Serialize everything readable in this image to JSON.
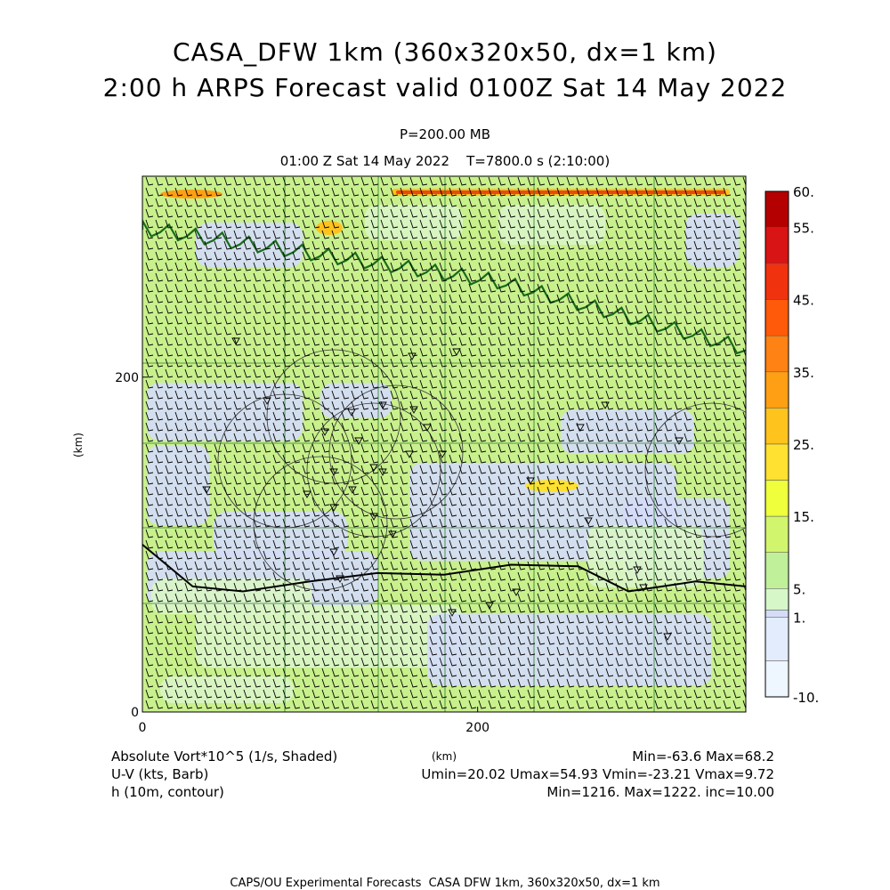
{
  "header": {
    "title_line1": "CASA_DFW 1km (360x320x50, dx=1 km)",
    "title_line2": "2:00 h ARPS Forecast valid 0100Z Sat 14 May 2022",
    "pressure": "P=200.00 MB",
    "time_line": "01:00 Z Sat 14 May 2022    T=7800.0 s (2:10:00)"
  },
  "footer": {
    "field1_label": "Absolute Vort*10^5 (1/s, Shaded)",
    "field2_label": "U-V (kts, Barb)",
    "field3_label": "h (10m, contour)",
    "x_unit": "(km)",
    "stats1": "Min=-63.6 Max=68.2",
    "stats2": "Umin=20.02 Umax=54.93 Vmin=-23.21 Vmax=9.72",
    "stats3": "Min=1216. Max=1222. inc=10.00",
    "credit": "CAPS/OU Experimental Forecasts  CASA DFW 1km, 360x320x50, dx=1 km"
  },
  "chart_data": {
    "type": "heatmap",
    "xlabel": "(km)",
    "ylabel": "(km)",
    "xlim": [
      0,
      360
    ],
    "ylim": [
      0,
      320
    ],
    "x_ticks": [
      0,
      200
    ],
    "y_ticks": [
      0,
      200
    ],
    "colorbar": {
      "labels": [
        "60.",
        "55.",
        "45.",
        "35.",
        "25.",
        "15.",
        "5.",
        "1.",
        "-10."
      ],
      "bands": [
        {
          "from": 55,
          "to": 60,
          "color": "#b40000"
        },
        {
          "from": 50,
          "to": 55,
          "color": "#d81414"
        },
        {
          "from": 45,
          "to": 50,
          "color": "#f0320f"
        },
        {
          "from": 40,
          "to": 45,
          "color": "#ff5a0a"
        },
        {
          "from": 35,
          "to": 40,
          "color": "#ff8214"
        },
        {
          "from": 30,
          "to": 35,
          "color": "#ffa014"
        },
        {
          "from": 25,
          "to": 30,
          "color": "#ffc31e"
        },
        {
          "from": 20,
          "to": 25,
          "color": "#ffe132"
        },
        {
          "from": 15,
          "to": 20,
          "color": "#f0ff3c"
        },
        {
          "from": 10,
          "to": 15,
          "color": "#d2f56e"
        },
        {
          "from": 5,
          "to": 10,
          "color": "#c0f09a"
        },
        {
          "from": 2,
          "to": 5,
          "color": "#d6f7c8"
        },
        {
          "from": 1,
          "to": 2,
          "color": "#d4dcf8"
        },
        {
          "from": -5,
          "to": 1,
          "color": "#e2ecfc"
        },
        {
          "from": -10,
          "to": -5,
          "color": "#eef6ff"
        }
      ]
    },
    "background_color": "#c8f08c",
    "low_vort_color": "#d4dcf8",
    "pale_green_color": "#d9f5c6",
    "max_streak_color": "#e84a10",
    "wind_barbs": {
      "direction": "westerly",
      "color": "#000000"
    },
    "contour_color": "#000000",
    "border_color": "#1a6b1a",
    "county_line_color": "#2a7a2a"
  }
}
